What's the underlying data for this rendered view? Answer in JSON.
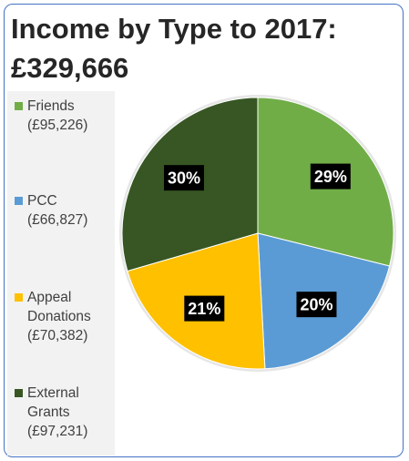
{
  "chart_data": {
    "type": "pie",
    "title": "Income by Type to 2017: £329,666",
    "start_angle_deg": 90,
    "direction": "clockwise",
    "legend_position": "left",
    "slices": [
      {
        "label": "Friends",
        "legend_text": "Friends\n(£95,226)",
        "value": 95226,
        "percent_label": "29%",
        "color": "#70ad47"
      },
      {
        "label": "PCC",
        "legend_text": "PCC\n(£66,827)",
        "value": 66827,
        "percent_label": "20%",
        "color": "#5b9bd5"
      },
      {
        "label": "Appeal Donations",
        "legend_text": "Appeal\nDonations\n(£70,382)",
        "value": 70382,
        "percent_label": "21%",
        "color": "#ffc000"
      },
      {
        "label": "External Grants",
        "legend_text": "External\nGrants\n(£97,231)",
        "value": 97231,
        "percent_label": "30%",
        "color": "#375623"
      }
    ]
  }
}
